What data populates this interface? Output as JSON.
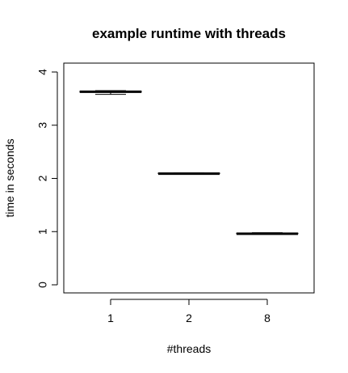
{
  "chart_data": {
    "type": "boxplot",
    "title": "example runtime with threads",
    "xlabel": "#threads",
    "ylabel": "time in seconds",
    "categories": [
      "1",
      "2",
      "8"
    ],
    "yticks": [
      "0",
      "1",
      "2",
      "3",
      "4"
    ],
    "ylim": [
      0,
      4
    ],
    "grid": false,
    "legend": "none",
    "boxes": [
      {
        "category": "1",
        "min": 3.58,
        "q1": 3.62,
        "median": 3.63,
        "q3": 3.64,
        "max": 3.65
      },
      {
        "category": "2",
        "min": 2.09,
        "q1": 2.09,
        "median": 2.09,
        "q3": 2.1,
        "max": 2.1
      },
      {
        "category": "8",
        "min": 0.95,
        "q1": 0.96,
        "median": 0.96,
        "q3": 0.97,
        "max": 0.98
      }
    ]
  }
}
